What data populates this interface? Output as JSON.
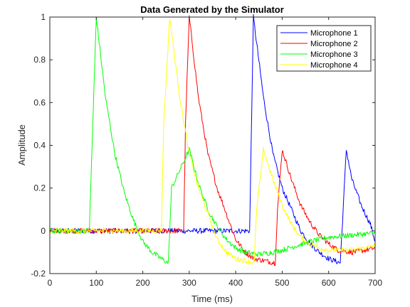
{
  "chart_data": {
    "type": "line",
    "title": "Data Generated by the Simulator",
    "xlabel": "Time (ms)",
    "ylabel": "Amplitude",
    "xlim": [
      0,
      700
    ],
    "ylim": [
      -0.2,
      1
    ],
    "xticks": [
      "0",
      "100",
      "200",
      "300",
      "400",
      "500",
      "600",
      "700"
    ],
    "yticks": [
      "-0.2",
      "0",
      "0.2",
      "0.4",
      "0.6",
      "0.8",
      "1"
    ],
    "grid": false,
    "legend_position": "top-right",
    "series": [
      {
        "name": "Microphone 1",
        "color": "#0000ff",
        "points": [
          [
            0,
            0.0
          ],
          [
            200,
            0.0
          ],
          [
            290,
            0.0
          ],
          [
            350,
            0.0
          ],
          [
            430,
            0.0
          ],
          [
            438,
            1.0
          ],
          [
            460,
            0.62
          ],
          [
            480,
            0.36
          ],
          [
            500,
            0.2
          ],
          [
            520,
            0.1
          ],
          [
            540,
            0.0
          ],
          [
            560,
            -0.06
          ],
          [
            580,
            -0.1
          ],
          [
            600,
            -0.13
          ],
          [
            625,
            -0.15
          ],
          [
            630,
            0.05
          ],
          [
            638,
            0.38
          ],
          [
            650,
            0.24
          ],
          [
            670,
            0.12
          ],
          [
            690,
            0.03
          ],
          [
            700,
            -0.05
          ]
        ]
      },
      {
        "name": "Microphone 2",
        "color": "#ff0000",
        "points": [
          [
            0,
            0.0
          ],
          [
            150,
            0.0
          ],
          [
            280,
            0.0
          ],
          [
            288,
            0.0
          ],
          [
            292,
            0.5
          ],
          [
            300,
            1.0
          ],
          [
            320,
            0.62
          ],
          [
            340,
            0.36
          ],
          [
            360,
            0.2
          ],
          [
            380,
            0.08
          ],
          [
            400,
            -0.04
          ],
          [
            420,
            -0.1
          ],
          [
            440,
            -0.13
          ],
          [
            485,
            -0.15
          ],
          [
            490,
            0.1
          ],
          [
            500,
            0.38
          ],
          [
            520,
            0.24
          ],
          [
            540,
            0.12
          ],
          [
            560,
            0.04
          ],
          [
            580,
            -0.02
          ],
          [
            600,
            -0.06
          ],
          [
            620,
            -0.09
          ],
          [
            650,
            -0.1
          ],
          [
            680,
            -0.09
          ],
          [
            700,
            -0.08
          ]
        ]
      },
      {
        "name": "Microphone 3",
        "color": "#00ff00",
        "points": [
          [
            0,
            0.0
          ],
          [
            85,
            0.0
          ],
          [
            100,
            1.0
          ],
          [
            120,
            0.62
          ],
          [
            140,
            0.36
          ],
          [
            160,
            0.18
          ],
          [
            180,
            0.05
          ],
          [
            200,
            -0.05
          ],
          [
            220,
            -0.1
          ],
          [
            240,
            -0.13
          ],
          [
            255,
            -0.15
          ],
          [
            262,
            0.2
          ],
          [
            300,
            0.38
          ],
          [
            320,
            0.22
          ],
          [
            340,
            0.1
          ],
          [
            360,
            0.02
          ],
          [
            380,
            -0.04
          ],
          [
            400,
            -0.08
          ],
          [
            420,
            -0.1
          ],
          [
            450,
            -0.11
          ],
          [
            480,
            -0.1
          ],
          [
            500,
            -0.09
          ],
          [
            530,
            -0.07
          ],
          [
            560,
            -0.05
          ],
          [
            600,
            -0.03
          ],
          [
            650,
            -0.02
          ],
          [
            700,
            -0.01
          ]
        ]
      },
      {
        "name": "Microphone 4",
        "color": "#ffff00",
        "points": [
          [
            0,
            0.0
          ],
          [
            150,
            0.0
          ],
          [
            240,
            0.0
          ],
          [
            245,
            0.5
          ],
          [
            258,
            1.0
          ],
          [
            280,
            0.62
          ],
          [
            300,
            0.36
          ],
          [
            320,
            0.2
          ],
          [
            340,
            0.08
          ],
          [
            360,
            -0.04
          ],
          [
            380,
            -0.1
          ],
          [
            400,
            -0.13
          ],
          [
            440,
            -0.15
          ],
          [
            445,
            0.1
          ],
          [
            460,
            0.38
          ],
          [
            480,
            0.24
          ],
          [
            500,
            0.12
          ],
          [
            520,
            0.03
          ],
          [
            540,
            -0.03
          ],
          [
            560,
            -0.06
          ],
          [
            580,
            -0.08
          ],
          [
            600,
            -0.09
          ],
          [
            650,
            -0.09
          ],
          [
            700,
            -0.07
          ]
        ]
      }
    ]
  }
}
